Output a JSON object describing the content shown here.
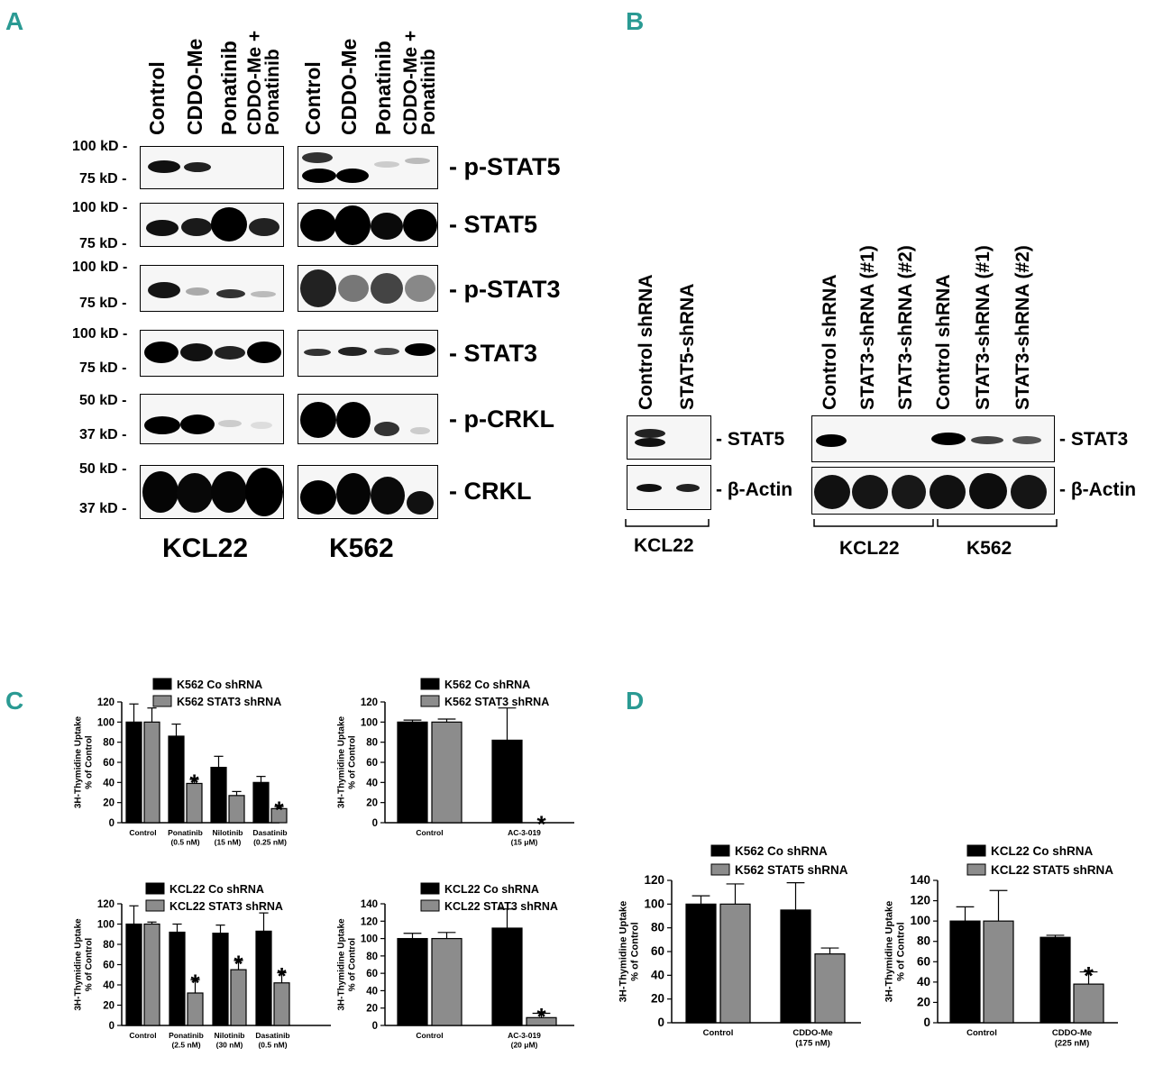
{
  "panels": {
    "a": "A",
    "b": "B",
    "c": "C",
    "d": "D"
  },
  "panelA": {
    "lanes": [
      "Control",
      "CDDO-Me",
      "Ponatinib",
      "CDDO-Me +",
      "Ponatinib"
    ],
    "markers": {
      "pstat5": [
        "100 kD -",
        "75 kD -"
      ],
      "stat5": [
        "100 kD -",
        "75 kD -"
      ],
      "pstat3": [
        "100 kD -",
        "75 kD -"
      ],
      "stat3": [
        "100 kD -",
        "75 kD -"
      ],
      "pcrkl": [
        "50 kD -",
        "37 kD -"
      ],
      "crkl": [
        "50 kD -",
        "37 kD -"
      ]
    },
    "proteins": [
      "- p-STAT5",
      "- STAT5",
      "- p-STAT3",
      "- STAT3",
      "- p-CRKL",
      "- CRKL"
    ],
    "cells": [
      "KCL22",
      "K562"
    ]
  },
  "panelB": {
    "left_lanes": [
      "Control shRNA",
      "STAT5-shRNA"
    ],
    "right_lanes": [
      "Control shRNA",
      "STAT3-shRNA (#1)",
      "STAT3-shRNA (#2)",
      "Control shRNA",
      "STAT3-shRNA (#1)",
      "STAT3-shRNA (#2)"
    ],
    "left_proteins": [
      "- STAT5",
      "- β-Actin"
    ],
    "right_proteins": [
      "- STAT3",
      "- β-Actin"
    ],
    "left_cell": "KCL22",
    "right_cells": [
      "KCL22",
      "K562"
    ]
  },
  "chart_data": [
    {
      "type": "bar",
      "id": "c1",
      "ylabel": [
        "3H-Thymidine Uptake",
        "% of Control"
      ],
      "ylim": [
        0,
        120
      ],
      "yticks": [
        0,
        20,
        40,
        60,
        80,
        100,
        120
      ],
      "categories": [
        [
          "Control"
        ],
        [
          "Ponatinib",
          "(0.5 nM)"
        ],
        [
          "Nilotinib",
          "(15 nM)"
        ],
        [
          "Dasatinib",
          "(0.25 nM)"
        ]
      ],
      "series": [
        {
          "name": "K562 Co shRNA",
          "color": "#000000",
          "values": [
            100,
            86,
            55,
            40
          ],
          "errors": [
            18,
            12,
            11,
            6
          ]
        },
        {
          "name": "K562 STAT3 shRNA",
          "color": "#8c8c8c",
          "values": [
            100,
            39,
            27,
            14
          ],
          "errors": [
            14,
            4,
            4,
            2
          ]
        }
      ],
      "stars": [
        1,
        3
      ]
    },
    {
      "type": "bar",
      "id": "c2",
      "ylabel": [
        "3H-Thymidine Uptake",
        "% of Control"
      ],
      "ylim": [
        0,
        120
      ],
      "yticks": [
        0,
        20,
        40,
        60,
        80,
        100,
        120
      ],
      "categories": [
        [
          "Control"
        ],
        [
          "AC-3-019",
          "(15 μM)"
        ]
      ],
      "series": [
        {
          "name": "K562 Co shRNA",
          "color": "#000000",
          "values": [
            100,
            82
          ],
          "errors": [
            2,
            32
          ]
        },
        {
          "name": "K562 STAT3 shRNA",
          "color": "#8c8c8c",
          "values": [
            100,
            0
          ],
          "errors": [
            3,
            0
          ]
        }
      ],
      "stars": [
        1
      ]
    },
    {
      "type": "bar",
      "id": "c3",
      "ylabel": [
        "3H-Thymidine Uptake",
        "% of Control"
      ],
      "ylim": [
        0,
        120
      ],
      "yticks": [
        0,
        20,
        40,
        60,
        80,
        100,
        120
      ],
      "categories": [
        [
          "Control"
        ],
        [
          "Ponatinib",
          "(2.5 nM)"
        ],
        [
          "Nilotinib",
          "(30 nM)"
        ],
        [
          "Dasatinib",
          "(0.5 nM)"
        ]
      ],
      "series": [
        {
          "name": "KCL22 Co shRNA",
          "color": "#000000",
          "values": [
            100,
            92,
            91,
            93
          ],
          "errors": [
            18,
            8,
            8,
            18
          ]
        },
        {
          "name": "KCL22 STAT3 shRNA",
          "color": "#8c8c8c",
          "values": [
            100,
            32,
            55,
            42
          ],
          "errors": [
            2,
            13,
            9,
            10
          ]
        }
      ],
      "stars": [
        1,
        2,
        3
      ]
    },
    {
      "type": "bar",
      "id": "c4",
      "ylabel": [
        "3H-Thymidine Uptake",
        "% of Control"
      ],
      "ylim": [
        0,
        140
      ],
      "yticks": [
        0,
        20,
        40,
        60,
        80,
        100,
        120,
        140
      ],
      "categories": [
        [
          "Control"
        ],
        [
          "AC-3-019",
          "(20 μM)"
        ]
      ],
      "series": [
        {
          "name": "KCL22 Co shRNA",
          "color": "#000000",
          "values": [
            100,
            112
          ],
          "errors": [
            6,
            22
          ]
        },
        {
          "name": "KCL22 STAT3 shRNA",
          "color": "#8c8c8c",
          "values": [
            100,
            9
          ],
          "errors": [
            7,
            5
          ]
        }
      ],
      "stars": [
        1
      ]
    },
    {
      "type": "bar",
      "id": "d1",
      "ylabel": [
        "3H-Thymidine Uptake",
        "% of Control"
      ],
      "ylim": [
        0,
        120
      ],
      "yticks": [
        0,
        20,
        40,
        60,
        80,
        100,
        120
      ],
      "categories": [
        [
          "Control"
        ],
        [
          "CDDO-Me",
          "(175 nM)"
        ]
      ],
      "series": [
        {
          "name": "K562 Co shRNA",
          "color": "#000000",
          "values": [
            100,
            95
          ],
          "errors": [
            7,
            23
          ]
        },
        {
          "name": "K562 STAT5 shRNA",
          "color": "#8c8c8c",
          "values": [
            100,
            58
          ],
          "errors": [
            17,
            5
          ]
        }
      ],
      "stars": []
    },
    {
      "type": "bar",
      "id": "d2",
      "ylabel": [
        "3H-Thymidine Uptake",
        "% of Control"
      ],
      "ylim": [
        0,
        140
      ],
      "yticks": [
        0,
        20,
        40,
        60,
        80,
        100,
        120,
        140
      ],
      "categories": [
        [
          "Control"
        ],
        [
          "CDDO-Me",
          "(225 nM)"
        ]
      ],
      "series": [
        {
          "name": "KCL22 Co shRNA",
          "color": "#000000",
          "values": [
            100,
            84
          ],
          "errors": [
            14,
            2
          ]
        },
        {
          "name": "KCL22 STAT5 shRNA",
          "color": "#8c8c8c",
          "values": [
            100,
            38
          ],
          "errors": [
            30,
            12
          ]
        }
      ],
      "stars": [
        1
      ]
    }
  ]
}
